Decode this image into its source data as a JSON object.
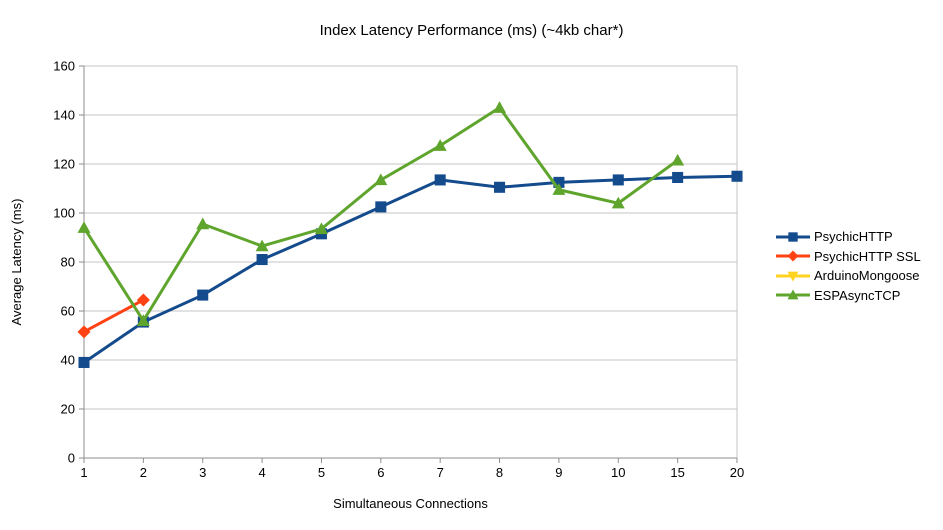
{
  "chart_data": {
    "type": "line",
    "title": "Index Latency Performance (ms) (~4kb char*)",
    "xlabel": "Simultaneous Connections",
    "ylabel": "Average Latency (ms)",
    "categories": [
      "1",
      "2",
      "3",
      "4",
      "5",
      "6",
      "7",
      "8",
      "9",
      "10",
      "15",
      "20"
    ],
    "ylim": [
      0,
      160
    ],
    "ytick_step": 20,
    "grid": true,
    "legend_position": "right",
    "series": [
      {
        "name": "PsychicHTTP",
        "color": "#144b8c",
        "marker": "square",
        "values": [
          39,
          55.5,
          66.5,
          81,
          91.5,
          102.5,
          113.5,
          110.5,
          112.5,
          113.5,
          114.5,
          115
        ]
      },
      {
        "name": "PsychicHTTP SSL",
        "color": "#ff4214",
        "marker": "diamond",
        "values": [
          51.5,
          64.5,
          null,
          null,
          null,
          null,
          null,
          null,
          null,
          null,
          null,
          null
        ]
      },
      {
        "name": "ArduinoMongoose",
        "color": "#ffd320",
        "marker": "triangle-down",
        "values": [
          null,
          null,
          null,
          null,
          null,
          null,
          null,
          null,
          null,
          null,
          null,
          null
        ]
      },
      {
        "name": "ESPAsyncTCP",
        "color": "#5fa52d",
        "marker": "triangle-up",
        "values": [
          94,
          56,
          95.5,
          86.5,
          93.5,
          113.5,
          127.5,
          143,
          109.5,
          104,
          121.5,
          null
        ]
      }
    ],
    "colors": {
      "grid": "#c6c6c6",
      "axis": "#8e8e8e",
      "text": "#000000",
      "background": "#ffffff"
    }
  }
}
